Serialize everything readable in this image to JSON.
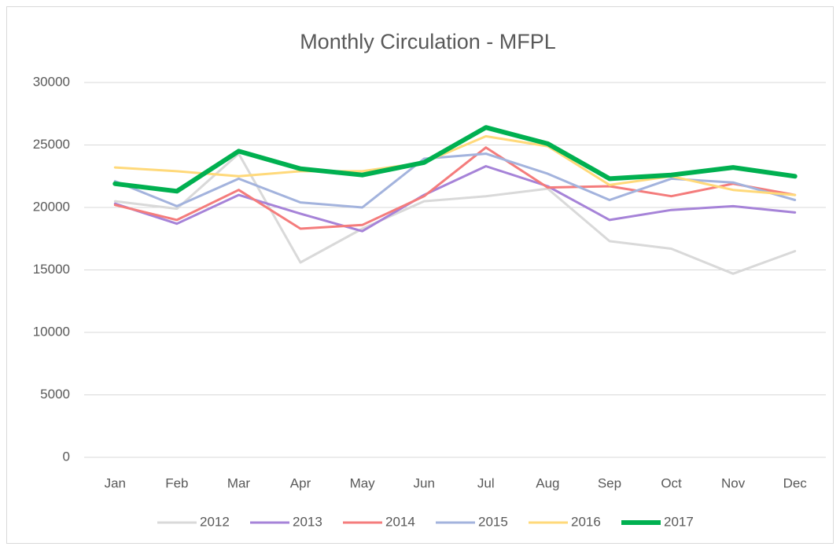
{
  "chart_data": {
    "type": "line",
    "title": "Monthly Circulation - MFPL",
    "categories": [
      "Jan",
      "Feb",
      "Mar",
      "Apr",
      "May",
      "Jun",
      "Jul",
      "Aug",
      "Sep",
      "Oct",
      "Nov",
      "Dec"
    ],
    "series": [
      {
        "name": "2012",
        "color": "#d9d9d9",
        "values": [
          20500,
          19900,
          24300,
          15600,
          18300,
          20500,
          20900,
          21500,
          17300,
          16700,
          14700,
          16500
        ]
      },
      {
        "name": "2013",
        "color": "#a683d8",
        "values": [
          20300,
          18700,
          21000,
          19500,
          18100,
          21000,
          23300,
          21700,
          19000,
          19800,
          20100,
          19600
        ]
      },
      {
        "name": "2014",
        "color": "#f47c7c",
        "values": [
          20200,
          19000,
          21400,
          18300,
          18600,
          20900,
          24800,
          21600,
          21700,
          20900,
          21900,
          21000
        ]
      },
      {
        "name": "2015",
        "color": "#a3b3dd",
        "values": [
          22100,
          20100,
          22300,
          20400,
          20000,
          23900,
          24300,
          22700,
          20600,
          22300,
          22000,
          20600
        ]
      },
      {
        "name": "2016",
        "color": "#ffd97a",
        "values": [
          23200,
          22900,
          22500,
          22900,
          22900,
          23600,
          25700,
          24900,
          21800,
          22500,
          21400,
          21000
        ]
      },
      {
        "name": "2017",
        "color": "#00b050",
        "values": [
          21900,
          21300,
          24500,
          23100,
          22600,
          23600,
          26400,
          25100,
          22300,
          22600,
          23200,
          22500
        ]
      }
    ],
    "ylim": [
      0,
      30000
    ],
    "yticks": [
      0,
      5000,
      10000,
      15000,
      20000,
      25000,
      30000
    ],
    "grid": true,
    "legend": "bottom"
  }
}
